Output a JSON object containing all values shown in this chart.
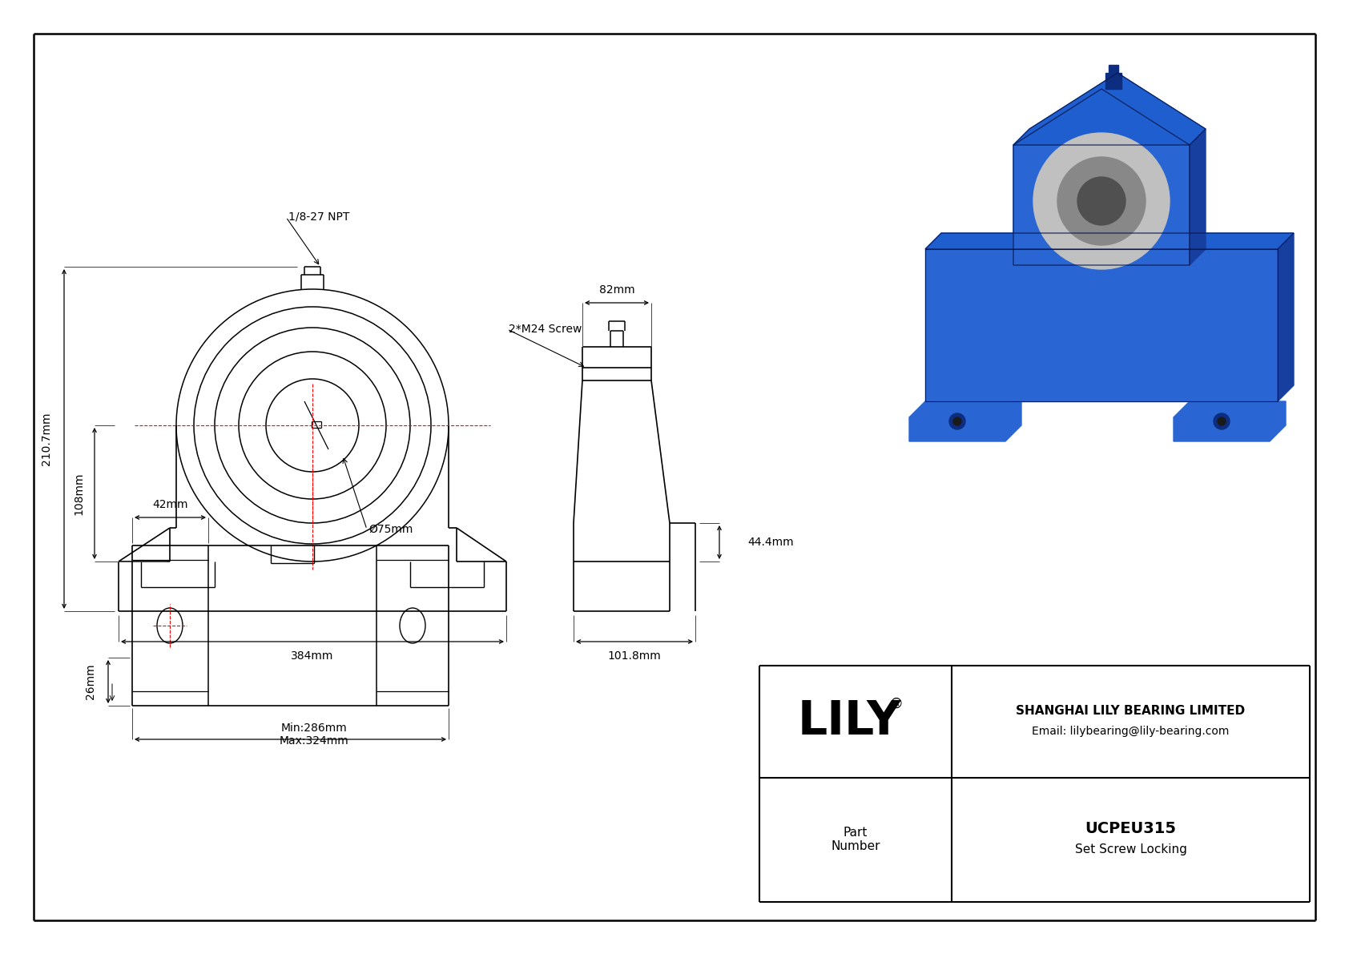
{
  "bg_color": "#ffffff",
  "lc": "#000000",
  "rc": "#ff0000",
  "dims": {
    "total_height": "210.7mm",
    "base_height": "108mm",
    "width": "384mm",
    "bore": "Ø75mm",
    "npt": "1/8-27 NPT",
    "side_width": "82mm",
    "side_screw": "2*M24 Screw",
    "side_step_h": "44.4mm",
    "side_base_w": "101.8mm",
    "bot_slot_w": "42mm",
    "bot_slot_h": "26mm",
    "bot_min": "Min:286mm",
    "bot_max": "Max:324mm"
  },
  "title_box": {
    "lily_text": "LILY",
    "reg_symbol": "®",
    "company": "SHANGHAI LILY BEARING LIMITED",
    "email": "Email: lilybearing@lily-bearing.com",
    "part_label": "Part\nNumber",
    "part_number": "UCPEU315",
    "locking": "Set Screw Locking"
  }
}
